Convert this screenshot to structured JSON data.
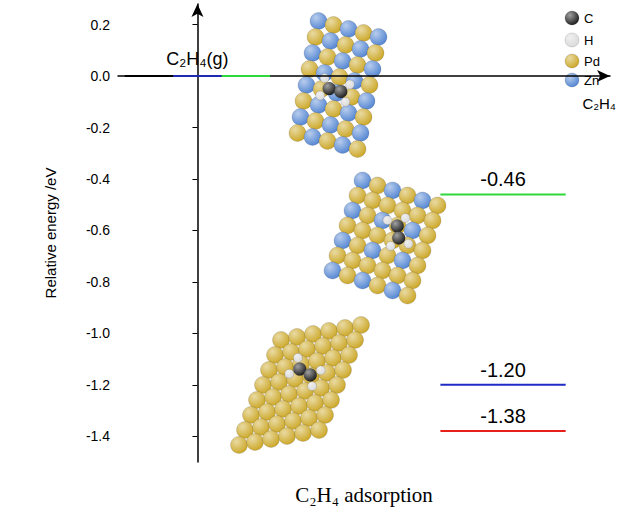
{
  "chart_data": {
    "type": "energy_level",
    "x_label": "C₂H₄ adsorption",
    "y_label": "Relative energy /eV",
    "x": [
      0,
      1
    ],
    "xlim": [
      -0.26,
      1.35
    ],
    "ylim": [
      -1.5,
      0.28
    ],
    "yticks": [
      0.2,
      {
        "value": 0,
        "label": "0.0"
      },
      -0.2,
      -0.4,
      -0.6,
      -0.8,
      {
        "value": -1,
        "label": "-1.0"
      },
      -1.2,
      -1.4
    ],
    "tick_labels": "y",
    "grid": false,
    "series": [
      {
        "colors": [
          "#000000",
          "#e8201c"
        ],
        "values": [
          0,
          -1.38
        ],
        "value_labels": [
          null,
          "-1.38"
        ]
      },
      {
        "colors": [
          "#1c2bb0",
          "#1f2bc4"
        ],
        "values": [
          0,
          -1.2
        ],
        "value_labels": [
          null,
          "-1.20"
        ]
      },
      {
        "colors": [
          "#2fd83a",
          "#2fd83a"
        ],
        "values": [
          0,
          -0.46
        ],
        "value_labels": [
          null,
          "-0.46"
        ]
      }
    ],
    "annotations": [
      {
        "text": "C₂H₄(g)",
        "x": 0,
        "y": 0
      },
      {
        "text": "C₂H₄"
      }
    ],
    "atom_key": [
      {
        "label": "C",
        "color": "#111111"
      },
      {
        "label": "H",
        "color": "#d8d8d8"
      },
      {
        "label": "Pd",
        "color": "#c9a21a"
      },
      {
        "label": "Zn",
        "color": "#4a7fd0"
      }
    ]
  }
}
